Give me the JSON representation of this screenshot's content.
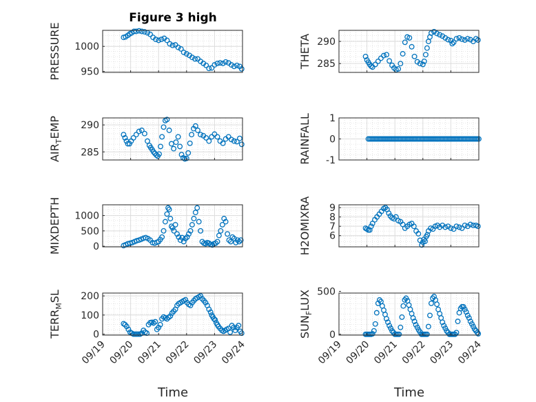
{
  "figure": {
    "title": "Figure 3 high",
    "x_tick_labels": [
      "09/19",
      "09/20",
      "09/21",
      "09/22",
      "09/23",
      "09/24"
    ],
    "x_label": "Time",
    "marker_color": "#0072BD"
  },
  "chart_data": [
    {
      "type": "scatter",
      "ylabel": "PRESSURE",
      "ylabel_main": "PRESSURE",
      "ylabel_sub": "",
      "ylim": [
        948,
        1032
      ],
      "yticks": [
        950,
        1000
      ],
      "xlim": [
        0,
        5
      ],
      "x": [
        0.75,
        0.82,
        0.9,
        0.97,
        1.04,
        1.12,
        1.2,
        1.3,
        1.4,
        1.5,
        1.6,
        1.7,
        1.8,
        1.9,
        2.0,
        2.1,
        2.2,
        2.3,
        2.4,
        2.5,
        2.6,
        2.7,
        2.8,
        2.9,
        3.0,
        3.1,
        3.2,
        3.3,
        3.4,
        3.5,
        3.6,
        3.7,
        3.8,
        3.9,
        4.0,
        4.1,
        4.2,
        4.3,
        4.4,
        4.5,
        4.6,
        4.7,
        4.8,
        4.9,
        4.97
      ],
      "y": [
        1018,
        1019,
        1022,
        1025,
        1027,
        1030,
        1030,
        1031,
        1030,
        1029,
        1027,
        1024,
        1018,
        1014,
        1012,
        1014,
        1016,
        1012,
        1005,
        1002,
        1003,
        998,
        995,
        988,
        985,
        982,
        978,
        975,
        975,
        970,
        966,
        962,
        956,
        957,
        963,
        966,
        967,
        966,
        969,
        967,
        963,
        960,
        962,
        960,
        955
      ]
    },
    {
      "type": "scatter",
      "ylabel": "THETA",
      "ylabel_main": "THETA",
      "ylabel_sub": "",
      "ylim": [
        283,
        292.5
      ],
      "yticks": [
        285,
        290
      ],
      "xlim": [
        0,
        5
      ],
      "x": [
        0.95,
        1.0,
        1.05,
        1.1,
        1.15,
        1.2,
        1.3,
        1.4,
        1.5,
        1.6,
        1.7,
        1.8,
        1.9,
        1.97,
        2.04,
        2.12,
        2.2,
        2.28,
        2.36,
        2.44,
        2.52,
        2.6,
        2.7,
        2.8,
        2.9,
        3.0,
        3.05,
        3.1,
        3.15,
        3.2,
        3.25,
        3.3,
        3.4,
        3.5,
        3.6,
        3.7,
        3.8,
        3.9,
        4.0,
        4.05,
        4.1,
        4.2,
        4.3,
        4.4,
        4.5,
        4.6,
        4.7,
        4.8,
        4.9,
        4.97
      ],
      "y": [
        286.6,
        285.8,
        285.3,
        284.8,
        284.4,
        284.2,
        284.8,
        285.5,
        286.2,
        286.8,
        287.0,
        285.6,
        284.6,
        284.0,
        283.6,
        283.8,
        285.0,
        287.2,
        289.8,
        291.0,
        290.8,
        288.8,
        286.6,
        285.4,
        285.0,
        284.8,
        285.5,
        287.0,
        288.5,
        290.0,
        291.0,
        291.9,
        292.2,
        291.8,
        291.5,
        291.2,
        290.8,
        290.4,
        290.2,
        289.5,
        289.8,
        290.6,
        290.8,
        290.5,
        290.3,
        290.6,
        290.4,
        290.0,
        290.6,
        290.3
      ]
    },
    {
      "type": "scatter",
      "ylabel": "AIR_TEMP",
      "ylabel_main": "AIR",
      "ylabel_sub": "T",
      "ylabel_rest": "EMP",
      "ylim": [
        283.5,
        291.3
      ],
      "yticks": [
        285,
        290
      ],
      "xlim": [
        0,
        5
      ],
      "x": [
        0.75,
        0.8,
        0.85,
        0.9,
        0.96,
        1.02,
        1.1,
        1.2,
        1.3,
        1.4,
        1.5,
        1.6,
        1.67,
        1.72,
        1.77,
        1.82,
        1.87,
        1.92,
        1.97,
        2.02,
        2.07,
        2.12,
        2.18,
        2.24,
        2.3,
        2.38,
        2.46,
        2.54,
        2.62,
        2.7,
        2.76,
        2.82,
        2.88,
        2.94,
        3.0,
        3.06,
        3.12,
        3.18,
        3.25,
        3.32,
        3.4,
        3.5,
        3.6,
        3.7,
        3.8,
        3.9,
        4.0,
        4.1,
        4.2,
        4.3,
        4.4,
        4.5,
        4.6,
        4.7,
        4.8,
        4.9,
        4.97
      ],
      "y": [
        288.2,
        287.6,
        287.0,
        286.5,
        286.5,
        287.0,
        287.6,
        288.2,
        288.8,
        289.0,
        288.4,
        287.0,
        286.2,
        285.8,
        285.4,
        285.0,
        284.7,
        284.4,
        284.2,
        284.6,
        286.0,
        287.8,
        289.6,
        290.8,
        291.0,
        289.0,
        286.5,
        285.6,
        286.8,
        287.8,
        286.0,
        284.5,
        283.9,
        283.7,
        283.8,
        284.8,
        286.6,
        288.2,
        289.3,
        289.8,
        289.0,
        288.2,
        288.0,
        287.6,
        287.0,
        287.8,
        288.3,
        287.8,
        287.0,
        286.6,
        287.4,
        287.8,
        287.3,
        287.0,
        286.9,
        287.5,
        286.4
      ]
    },
    {
      "type": "scatter",
      "ylabel": "RAINFALL",
      "ylabel_main": "RAINFALL",
      "ylabel_sub": "",
      "ylim": [
        -1,
        1
      ],
      "yticks": [
        -1,
        0,
        1
      ],
      "xlim": [
        0,
        5
      ],
      "x": [
        1.05,
        1.1,
        1.15,
        1.2,
        1.25,
        1.3,
        1.35,
        1.4,
        1.45,
        1.5,
        1.55,
        1.6,
        1.65,
        1.7,
        1.75,
        1.8,
        1.85,
        1.9,
        1.95,
        2.0,
        2.05,
        2.1,
        2.15,
        2.2,
        2.25,
        2.3,
        2.35,
        2.4,
        2.45,
        2.5,
        2.55,
        2.6,
        2.65,
        2.7,
        2.75,
        2.8,
        2.85,
        2.9,
        2.95,
        3.0,
        3.05,
        3.1,
        3.15,
        3.2,
        3.25,
        3.3,
        3.35,
        3.4,
        3.45,
        3.5,
        3.55,
        3.6,
        3.65,
        3.7,
        3.75,
        3.8,
        3.85,
        3.9,
        3.95,
        4.0,
        4.05,
        4.1,
        4.15,
        4.2,
        4.25,
        4.3,
        4.35,
        4.4,
        4.45,
        4.5,
        4.55,
        4.6,
        4.65,
        4.7,
        4.75,
        4.8,
        4.85,
        4.9,
        4.95,
        5.0
      ],
      "y": [
        0,
        0,
        0,
        0,
        0,
        0,
        0,
        0,
        0,
        0,
        0,
        0,
        0,
        0,
        0,
        0,
        0,
        0,
        0,
        0,
        0,
        0,
        0,
        0,
        0,
        0,
        0,
        0,
        0,
        0,
        0,
        0,
        0,
        0,
        0,
        0,
        0,
        0,
        0,
        0,
        0,
        0,
        0,
        0,
        0,
        0,
        0,
        0,
        0,
        0,
        0,
        0,
        0,
        0,
        0,
        0,
        0,
        0,
        0,
        0,
        0,
        0,
        0,
        0,
        0,
        0,
        0,
        0,
        0,
        0,
        0,
        0,
        0,
        0,
        0,
        0,
        0,
        0,
        0,
        0
      ]
    },
    {
      "type": "scatter",
      "ylabel": "MIXDEPTH",
      "ylabel_main": "MIXDEPTH",
      "ylabel_sub": "",
      "ylim": [
        -20,
        1350
      ],
      "yticks": [
        0,
        500,
        1000
      ],
      "xlim": [
        0,
        5
      ],
      "x": [
        0.75,
        0.82,
        0.9,
        0.98,
        1.06,
        1.14,
        1.22,
        1.3,
        1.38,
        1.46,
        1.54,
        1.62,
        1.7,
        1.78,
        1.86,
        1.94,
        2.0,
        2.06,
        2.12,
        2.18,
        2.24,
        2.3,
        2.34,
        2.38,
        2.42,
        2.46,
        2.5,
        2.55,
        2.6,
        2.66,
        2.72,
        2.78,
        2.84,
        2.9,
        2.96,
        3.02,
        3.08,
        3.14,
        3.2,
        3.26,
        3.32,
        3.38,
        3.44,
        3.5,
        3.56,
        3.62,
        3.68,
        3.74,
        3.8,
        3.86,
        3.92,
        3.98,
        4.04,
        4.1,
        4.16,
        4.22,
        4.28,
        4.34,
        4.4,
        4.46,
        4.52,
        4.58,
        4.64,
        4.7,
        4.76,
        4.82,
        4.88,
        4.94
      ],
      "y": [
        20,
        50,
        80,
        100,
        120,
        150,
        180,
        200,
        230,
        260,
        280,
        250,
        200,
        120,
        100,
        130,
        150,
        220,
        300,
        500,
        800,
        1050,
        1250,
        1200,
        900,
        650,
        600,
        500,
        700,
        400,
        300,
        200,
        280,
        150,
        250,
        300,
        400,
        500,
        700,
        900,
        1100,
        1250,
        800,
        500,
        150,
        100,
        80,
        120,
        100,
        60,
        40,
        80,
        100,
        150,
        350,
        500,
        700,
        900,
        800,
        400,
        200,
        150,
        300,
        250,
        120,
        200,
        150,
        200
      ]
    },
    {
      "type": "scatter",
      "ylabel": "H2OMIXRA",
      "ylabel_main": "H2OMIXRA",
      "ylabel_sub": "",
      "ylim": [
        4.8,
        9.3
      ],
      "yticks": [
        6,
        7,
        8,
        9
      ],
      "xlim": [
        0,
        5
      ],
      "x": [
        0.95,
        1.0,
        1.05,
        1.1,
        1.15,
        1.2,
        1.28,
        1.36,
        1.44,
        1.52,
        1.6,
        1.66,
        1.72,
        1.78,
        1.84,
        1.9,
        1.97,
        2.04,
        2.12,
        2.2,
        2.28,
        2.36,
        2.44,
        2.52,
        2.6,
        2.68,
        2.76,
        2.84,
        2.9,
        2.96,
        3.0,
        3.04,
        3.08,
        3.12,
        3.16,
        3.2,
        3.28,
        3.36,
        3.44,
        3.52,
        3.6,
        3.7,
        3.8,
        3.9,
        4.0,
        4.1,
        4.2,
        4.3,
        4.4,
        4.5,
        4.6,
        4.7,
        4.8,
        4.9,
        4.97
      ],
      "y": [
        6.8,
        6.7,
        6.6,
        6.6,
        7.0,
        7.3,
        7.7,
        8.0,
        8.3,
        8.6,
        8.9,
        9.0,
        8.8,
        8.4,
        8.1,
        7.9,
        7.8,
        8.0,
        7.6,
        7.5,
        7.2,
        6.8,
        7.0,
        7.2,
        7.3,
        7.0,
        6.5,
        6.2,
        5.5,
        5.0,
        5.3,
        5.6,
        5.4,
        5.9,
        6.1,
        6.5,
        6.8,
        6.7,
        7.0,
        7.1,
        6.9,
        7.1,
        6.9,
        7.0,
        6.8,
        6.7,
        7.0,
        6.9,
        6.8,
        7.1,
        7.0,
        7.2,
        7.1,
        7.1,
        7.0
      ]
    },
    {
      "type": "scatter",
      "ylabel": "TERR_MSL",
      "ylabel_main": "TERR",
      "ylabel_sub": "M",
      "ylabel_rest": "SL",
      "ylim": [
        -5,
        215
      ],
      "yticks": [
        0,
        100,
        200
      ],
      "xlim": [
        0,
        5
      ],
      "x": [
        0.75,
        0.8,
        0.86,
        0.92,
        0.98,
        1.04,
        1.1,
        1.16,
        1.22,
        1.28,
        1.34,
        1.4,
        1.46,
        1.52,
        1.58,
        1.64,
        1.7,
        1.76,
        1.82,
        1.88,
        1.94,
        2.0,
        2.06,
        2.12,
        2.18,
        2.24,
        2.3,
        2.36,
        2.42,
        2.48,
        2.54,
        2.6,
        2.66,
        2.72,
        2.78,
        2.84,
        2.9,
        2.96,
        3.02,
        3.08,
        3.14,
        3.2,
        3.26,
        3.32,
        3.38,
        3.44,
        3.5,
        3.56,
        3.62,
        3.68,
        3.74,
        3.8,
        3.86,
        3.9,
        3.94,
        3.98,
        4.02,
        4.06,
        4.1,
        4.14,
        4.2,
        4.26,
        4.32,
        4.38,
        4.44,
        4.5,
        4.56,
        4.62,
        4.68,
        4.74,
        4.8,
        4.86,
        4.92,
        4.97
      ],
      "y": [
        55,
        50,
        40,
        25,
        10,
        5,
        0,
        0,
        0,
        0,
        0,
        5,
        20,
        10,
        5,
        50,
        60,
        62,
        58,
        65,
        25,
        35,
        50,
        80,
        90,
        85,
        80,
        88,
        95,
        110,
        120,
        130,
        150,
        160,
        165,
        170,
        175,
        180,
        165,
        155,
        150,
        165,
        175,
        185,
        190,
        195,
        200,
        185,
        175,
        165,
        150,
        130,
        115,
        100,
        90,
        80,
        75,
        60,
        50,
        40,
        30,
        20,
        15,
        20,
        25,
        30,
        10,
        45,
        35,
        20,
        35,
        45,
        15,
        5
      ]
    },
    {
      "type": "scatter",
      "ylabel": "SUN_FLUX",
      "ylabel_main": "SUN",
      "ylabel_sub": "F",
      "ylabel_rest": "LUX",
      "ylim": [
        -10,
        480
      ],
      "yticks": [
        0,
        500
      ],
      "xlim": [
        0,
        5
      ],
      "x": [
        0.95,
        1.0,
        1.05,
        1.1,
        1.15,
        1.2,
        1.25,
        1.3,
        1.35,
        1.4,
        1.45,
        1.5,
        1.55,
        1.6,
        1.65,
        1.7,
        1.75,
        1.8,
        1.85,
        1.9,
        1.95,
        2.0,
        2.05,
        2.1,
        2.15,
        2.2,
        2.25,
        2.3,
        2.35,
        2.4,
        2.45,
        2.5,
        2.55,
        2.6,
        2.65,
        2.7,
        2.75,
        2.8,
        2.85,
        2.9,
        2.95,
        3.0,
        3.05,
        3.1,
        3.15,
        3.2,
        3.25,
        3.3,
        3.35,
        3.4,
        3.45,
        3.5,
        3.55,
        3.6,
        3.65,
        3.7,
        3.75,
        3.8,
        3.85,
        3.9,
        3.95,
        4.0,
        4.05,
        4.1,
        4.15,
        4.2,
        4.25,
        4.3,
        4.35,
        4.4,
        4.45,
        4.5,
        4.55,
        4.6,
        4.65,
        4.7,
        4.75,
        4.8,
        4.85,
        4.9,
        4.95,
        4.98
      ],
      "y": [
        0,
        0,
        0,
        0,
        0,
        5,
        40,
        120,
        250,
        360,
        400,
        380,
        330,
        280,
        230,
        180,
        140,
        100,
        70,
        40,
        20,
        0,
        0,
        0,
        0,
        80,
        200,
        330,
        400,
        420,
        390,
        340,
        290,
        240,
        190,
        150,
        110,
        80,
        50,
        25,
        0,
        0,
        0,
        0,
        0,
        90,
        220,
        360,
        420,
        440,
        400,
        350,
        290,
        240,
        190,
        140,
        100,
        70,
        40,
        20,
        0,
        0,
        0,
        0,
        0,
        20,
        150,
        250,
        300,
        320,
        320,
        290,
        260,
        220,
        190,
        150,
        120,
        90,
        60,
        40,
        20,
        5
      ]
    }
  ]
}
